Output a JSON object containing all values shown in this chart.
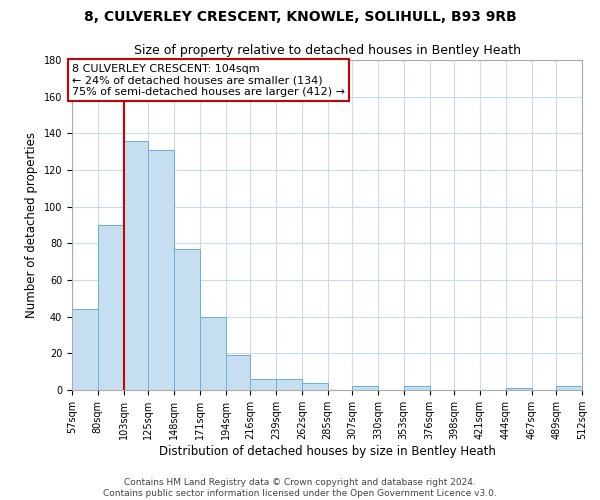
{
  "title": "8, CULVERLEY CRESCENT, KNOWLE, SOLIHULL, B93 9RB",
  "subtitle": "Size of property relative to detached houses in Bentley Heath",
  "xlabel": "Distribution of detached houses by size in Bentley Heath",
  "ylabel": "Number of detached properties",
  "bin_edges": [
    57,
    80,
    103,
    125,
    148,
    171,
    194,
    216,
    239,
    262,
    285,
    307,
    330,
    353,
    376,
    398,
    421,
    444,
    467,
    489,
    512
  ],
  "bin_labels": [
    "57sqm",
    "80sqm",
    "103sqm",
    "125sqm",
    "148sqm",
    "171sqm",
    "194sqm",
    "216sqm",
    "239sqm",
    "262sqm",
    "285sqm",
    "307sqm",
    "330sqm",
    "353sqm",
    "376sqm",
    "398sqm",
    "421sqm",
    "444sqm",
    "467sqm",
    "489sqm",
    "512sqm"
  ],
  "bar_heights": [
    44,
    90,
    136,
    131,
    77,
    40,
    19,
    6,
    6,
    4,
    0,
    2,
    0,
    2,
    0,
    0,
    0,
    1,
    0,
    2
  ],
  "bar_color": "#c5dff0",
  "bar_edge_color": "#6baed6",
  "property_line_x": 103,
  "property_line_color": "#cc0000",
  "ylim": [
    0,
    180
  ],
  "yticks": [
    0,
    20,
    40,
    60,
    80,
    100,
    120,
    140,
    160,
    180
  ],
  "annotation_text_line1": "8 CULVERLEY CRESCENT: 104sqm",
  "annotation_text_line2": "← 24% of detached houses are smaller (134)",
  "annotation_text_line3": "75% of semi-detached houses are larger (412) →",
  "footer_line1": "Contains HM Land Registry data © Crown copyright and database right 2024.",
  "footer_line2": "Contains public sector information licensed under the Open Government Licence v3.0.",
  "background_color": "#ffffff",
  "grid_color": "#c8dce8",
  "title_fontsize": 10,
  "subtitle_fontsize": 9,
  "axis_label_fontsize": 8.5,
  "tick_fontsize": 7,
  "annotation_fontsize": 8,
  "footer_fontsize": 6.5
}
